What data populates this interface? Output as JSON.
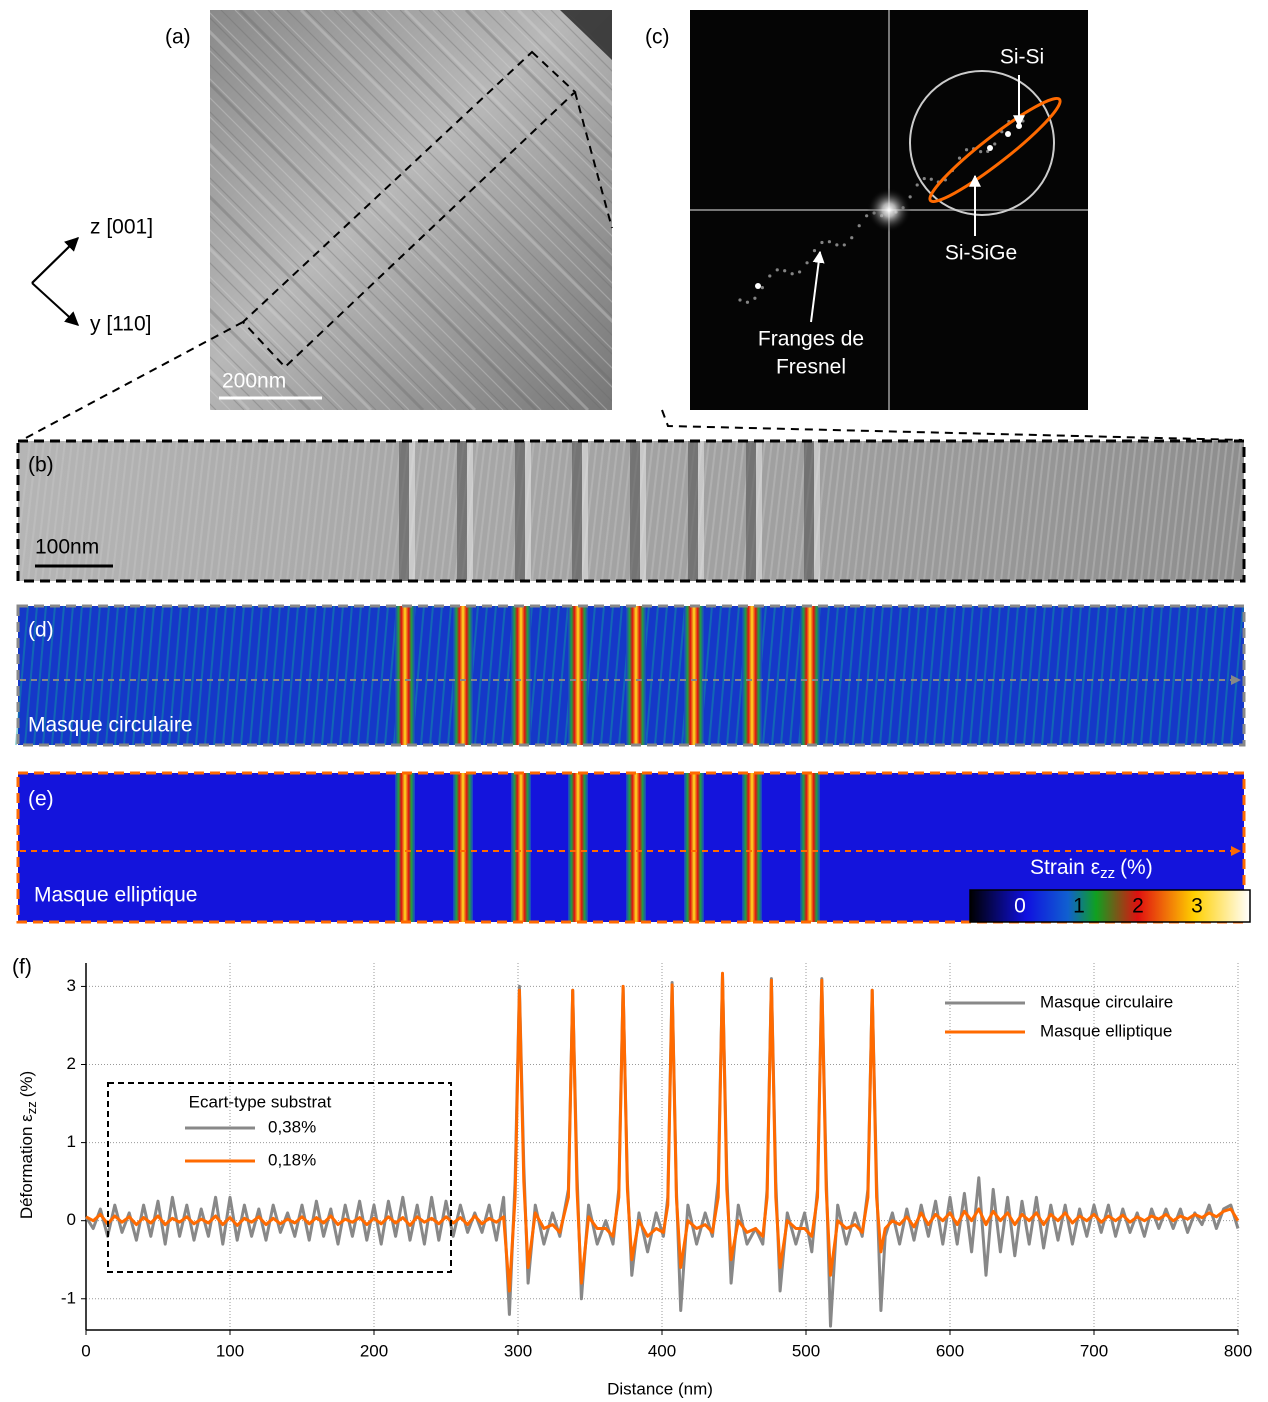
{
  "panels": {
    "labels": [
      "(a)",
      "(b)",
      "(c)",
      "(d)",
      "(e)",
      "(f)"
    ],
    "axes": {
      "z": "z [001]",
      "y": "y [110]"
    },
    "scale_a": "200nm",
    "scale_b": "100nm",
    "fft": {
      "si_si": "Si-Si",
      "si_sige": "Si-SiGe",
      "fresnel_1": "Franges de",
      "fresnel_2": "Fresnel"
    },
    "mask_d": "Masque circulaire",
    "mask_e": "Masque elliptique",
    "colorbar": {
      "label_main": "Strain ε",
      "label_sub": "zz",
      "label_unit": "(%)",
      "ticks": [
        0,
        1,
        2,
        3
      ]
    }
  },
  "chart_data": {
    "type": "line",
    "x_label": "Distance (nm)",
    "y_label": {
      "main": "Déformation ε",
      "sub": "zz",
      "unit": "(%)"
    },
    "xlim": [
      0,
      800
    ],
    "xticks": [
      0,
      100,
      200,
      300,
      400,
      500,
      600,
      700,
      800
    ],
    "ylim": [
      -1.4,
      3.3
    ],
    "yticks": [
      -1,
      0,
      1,
      2,
      3
    ],
    "grid": true,
    "legend": "upper right",
    "inset": {
      "title": "Ecart-type substrat",
      "entries": [
        "0,38%",
        "0,18%"
      ]
    },
    "x": [
      0,
      5,
      10,
      15,
      20,
      25,
      30,
      35,
      40,
      45,
      50,
      55,
      60,
      65,
      70,
      75,
      80,
      85,
      90,
      95,
      100,
      105,
      110,
      115,
      120,
      125,
      130,
      135,
      140,
      145,
      150,
      155,
      160,
      165,
      170,
      175,
      180,
      185,
      190,
      195,
      200,
      205,
      210,
      215,
      220,
      225,
      230,
      235,
      240,
      245,
      250,
      255,
      260,
      265,
      270,
      275,
      280,
      285,
      290,
      294,
      298,
      301,
      304,
      307,
      312,
      318,
      324,
      329,
      335,
      338,
      341,
      344,
      349,
      355,
      361,
      366,
      370,
      373,
      376,
      379,
      384,
      390,
      396,
      401,
      404,
      407,
      410,
      413,
      418,
      424,
      430,
      435,
      439,
      442,
      445,
      448,
      453,
      459,
      465,
      470,
      473,
      476,
      479,
      482,
      487,
      493,
      499,
      504,
      508,
      511,
      514,
      517,
      522,
      528,
      534,
      539,
      543,
      546,
      549,
      552,
      555,
      560,
      565,
      570,
      575,
      580,
      585,
      590,
      595,
      600,
      605,
      610,
      615,
      620,
      625,
      630,
      635,
      640,
      645,
      650,
      655,
      660,
      665,
      670,
      675,
      680,
      685,
      690,
      695,
      700,
      705,
      710,
      715,
      720,
      725,
      730,
      735,
      740,
      745,
      750,
      755,
      760,
      765,
      770,
      775,
      780,
      785,
      790,
      795,
      800
    ],
    "series": [
      {
        "name": "Masque circulaire",
        "color": "#888888",
        "values": [
          0.05,
          -0.1,
          0.15,
          -0.2,
          0.2,
          -0.15,
          0.1,
          -0.25,
          0.2,
          -0.2,
          0.25,
          -0.3,
          0.3,
          -0.2,
          0.2,
          -0.25,
          0.15,
          -0.2,
          0.3,
          -0.3,
          0.3,
          -0.25,
          0.2,
          -0.2,
          0.15,
          -0.25,
          0.2,
          -0.15,
          0.1,
          -0.2,
          0.2,
          -0.25,
          0.25,
          -0.2,
          0.15,
          -0.3,
          0.2,
          -0.2,
          0.25,
          -0.25,
          0.2,
          -0.3,
          0.25,
          -0.2,
          0.3,
          -0.25,
          0.2,
          -0.3,
          0.3,
          -0.25,
          0.25,
          -0.2,
          0.2,
          -0.15,
          0.1,
          -0.15,
          0.2,
          -0.25,
          0.3,
          -1.2,
          0.5,
          3.0,
          0.7,
          -0.8,
          0.2,
          -0.3,
          0.1,
          -0.2,
          0.4,
          2.95,
          0.6,
          -1.0,
          0.2,
          -0.3,
          0.0,
          -0.3,
          0.4,
          3.0,
          0.5,
          -0.7,
          0.1,
          -0.4,
          0.1,
          -0.2,
          0.3,
          3.05,
          0.4,
          -1.15,
          0.2,
          -0.3,
          0.1,
          -0.2,
          0.5,
          3.15,
          0.6,
          -0.8,
          0.2,
          -0.3,
          -0.1,
          -0.3,
          0.4,
          3.1,
          0.5,
          -0.9,
          0.1,
          -0.3,
          0.1,
          -0.4,
          0.4,
          3.1,
          0.6,
          -1.35,
          0.2,
          -0.3,
          0.1,
          -0.2,
          0.4,
          2.95,
          0.5,
          -1.15,
          -0.2,
          0.1,
          -0.3,
          0.15,
          -0.25,
          0.2,
          -0.2,
          0.25,
          -0.3,
          0.3,
          -0.3,
          0.35,
          -0.4,
          0.55,
          -0.7,
          0.4,
          -0.4,
          0.3,
          -0.45,
          0.25,
          -0.3,
          0.3,
          -0.35,
          0.2,
          -0.25,
          0.2,
          -0.3,
          0.15,
          -0.2,
          0.2,
          -0.15,
          0.2,
          -0.2,
          0.15,
          -0.15,
          0.1,
          -0.2,
          0.15,
          -0.1,
          0.15,
          -0.1,
          0.15,
          -0.15,
          0.1,
          -0.05,
          0.2,
          -0.1,
          0.15,
          0.2,
          -0.1
        ]
      },
      {
        "name": "Masque elliptique",
        "color": "#ff6a00",
        "values": [
          0.05,
          0,
          0.08,
          -0.04,
          0.06,
          -0.02,
          0.05,
          -0.05,
          0.04,
          -0.03,
          0.06,
          -0.05,
          0.03,
          -0.02,
          0.05,
          -0.04,
          0.02,
          -0.03,
          0.06,
          -0.05,
          0.04,
          -0.06,
          0.03,
          -0.02,
          0.05,
          -0.05,
          0.03,
          -0.04,
          0.02,
          -0.03,
          0.05,
          -0.04,
          0.04,
          -0.03,
          0.06,
          -0.05,
          0.02,
          -0.02,
          0.04,
          -0.05,
          0.03,
          -0.04,
          0.05,
          -0.03,
          0.04,
          -0.06,
          0.05,
          -0.02,
          0.03,
          -0.04,
          0.05,
          -0.03,
          0.04,
          -0.05,
          0.06,
          -0.04,
          0.03,
          -0.02,
          0.05,
          -0.9,
          0.3,
          2.95,
          0.5,
          -0.6,
          0.1,
          -0.1,
          -0.05,
          -0.15,
          0.3,
          2.95,
          0.4,
          -0.8,
          0.05,
          -0.1,
          -0.1,
          -0.2,
          0.3,
          3.0,
          0.4,
          -0.5,
          0.0,
          -0.2,
          -0.1,
          -0.15,
          0.2,
          3.02,
          0.3,
          -0.6,
          0.0,
          -0.1,
          -0.05,
          -0.15,
          0.3,
          3.17,
          0.4,
          -0.5,
          0.0,
          -0.15,
          -0.1,
          -0.2,
          0.3,
          3.08,
          0.3,
          -0.6,
          0.0,
          -0.1,
          -0.1,
          -0.2,
          0.3,
          3.08,
          0.4,
          -0.7,
          0.0,
          -0.1,
          -0.05,
          -0.15,
          0.3,
          2.95,
          0.3,
          -0.4,
          -0.1,
          0.0,
          -0.05,
          0.05,
          -0.08,
          0.1,
          -0.05,
          0.08,
          0.0,
          0.1,
          -0.05,
          0.12,
          0.0,
          0.15,
          -0.05,
          0.12,
          0.0,
          0.1,
          -0.05,
          0.08,
          0.0,
          0.1,
          -0.05,
          0.08,
          0.0,
          0.1,
          -0.03,
          0.06,
          0.0,
          0.08,
          -0.02,
          0.06,
          0.0,
          0.07,
          -0.02,
          0.05,
          0.0,
          0.06,
          0.02,
          0.08,
          0.0,
          0.06,
          0.02,
          0.08,
          0.04,
          0.1,
          0.05,
          0.12,
          0.15,
          0.0
        ]
      }
    ]
  }
}
